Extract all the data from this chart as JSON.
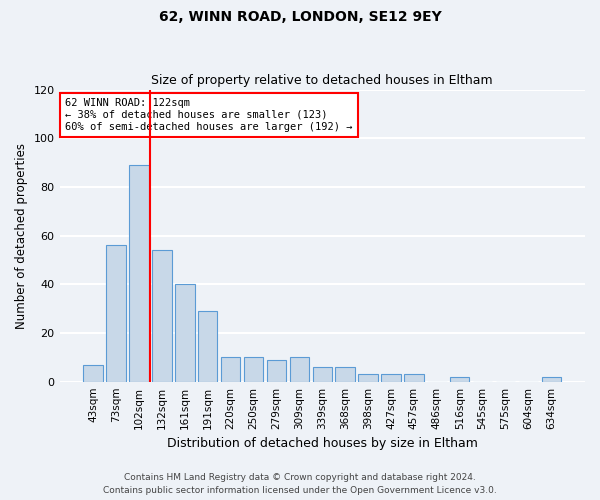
{
  "title1": "62, WINN ROAD, LONDON, SE12 9EY",
  "title2": "Size of property relative to detached houses in Eltham",
  "xlabel": "Distribution of detached houses by size in Eltham",
  "ylabel": "Number of detached properties",
  "categories": [
    "43sqm",
    "73sqm",
    "102sqm",
    "132sqm",
    "161sqm",
    "191sqm",
    "220sqm",
    "250sqm",
    "279sqm",
    "309sqm",
    "339sqm",
    "368sqm",
    "398sqm",
    "427sqm",
    "457sqm",
    "486sqm",
    "516sqm",
    "545sqm",
    "575sqm",
    "604sqm",
    "634sqm"
  ],
  "values": [
    7,
    56,
    89,
    54,
    40,
    29,
    10,
    10,
    9,
    10,
    6,
    6,
    3,
    3,
    3,
    0,
    2,
    0,
    0,
    0,
    2
  ],
  "bar_color": "#c8d8e8",
  "bar_edge_color": "#5b9bd5",
  "red_line_x": 2.5,
  "annotation_text": "62 WINN ROAD: 122sqm\n← 38% of detached houses are smaller (123)\n60% of semi-detached houses are larger (192) →",
  "annotation_box_color": "white",
  "annotation_box_edge_color": "red",
  "red_line_color": "red",
  "ylim": [
    0,
    120
  ],
  "yticks": [
    0,
    20,
    40,
    60,
    80,
    100,
    120
  ],
  "footer1": "Contains HM Land Registry data © Crown copyright and database right 2024.",
  "footer2": "Contains public sector information licensed under the Open Government Licence v3.0.",
  "bg_color": "#eef2f7",
  "grid_color": "white"
}
